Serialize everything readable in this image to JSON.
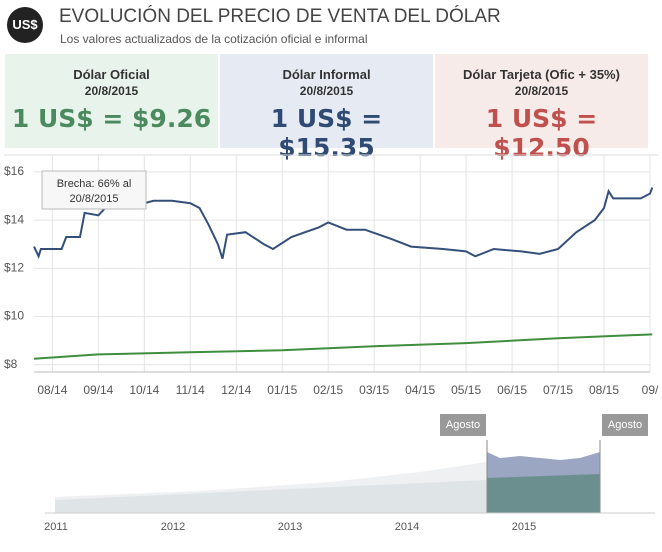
{
  "header": {
    "logo": "US$",
    "title": "EVOLUCIÓN DEL PRECIO DE VENTA DEL DÓLAR",
    "subtitle": "Los valores actualizados de la cotización oficial e informal"
  },
  "cards": [
    {
      "label": "Dólar Oficial",
      "date": "20/8/2015",
      "value": "1 US$ = $9.26",
      "color": "#4a8a5e",
      "background": "#e8f3ec"
    },
    {
      "label": "Dólar Informal",
      "date": "20/8/2015",
      "value": "1 US$ = $15.35",
      "color": "#2f4b73",
      "background": "#e6ebf3"
    },
    {
      "label": "Dólar Tarjeta (Ofic + 35%)",
      "date": "20/8/2015",
      "value": "1 US$ = $12.50",
      "color": "#c0504d",
      "background": "#f7ebe9"
    }
  ],
  "chart_data": {
    "type": "line",
    "xlim": [
      -0.4,
      13
    ],
    "ylim": [
      7.7,
      16.7
    ],
    "xticks": [
      {
        "value": 0,
        "label": "08/14"
      },
      {
        "value": 1,
        "label": "09/14"
      },
      {
        "value": 2,
        "label": "10/14"
      },
      {
        "value": 3,
        "label": "11/14"
      },
      {
        "value": 4,
        "label": "12/14"
      },
      {
        "value": 5,
        "label": "01/15"
      },
      {
        "value": 6,
        "label": "02/15"
      },
      {
        "value": 7,
        "label": "03/15"
      },
      {
        "value": 8,
        "label": "04/15"
      },
      {
        "value": 9,
        "label": "05/15"
      },
      {
        "value": 10,
        "label": "06/15"
      },
      {
        "value": 11,
        "label": "07/15"
      },
      {
        "value": 12,
        "label": "08/15"
      },
      {
        "value": 13,
        "label": "09/"
      }
    ],
    "yticks": [
      {
        "value": 8,
        "label": "$8"
      },
      {
        "value": 10,
        "label": "$10"
      },
      {
        "value": 12,
        "label": "$12"
      },
      {
        "value": 14,
        "label": "$14"
      },
      {
        "value": 16,
        "label": "$16"
      }
    ],
    "grid": true,
    "annotation": [
      "Brecha: 66% al",
      "20/8/2015"
    ],
    "series": [
      {
        "name": "Dólar Informal",
        "color": "#34507a",
        "x": [
          -0.4,
          -0.3,
          -0.25,
          -0.2,
          0.2,
          0.3,
          0.6,
          0.7,
          1.0,
          1.2,
          1.5,
          2.0,
          2.2,
          2.6,
          3.0,
          3.2,
          3.4,
          3.6,
          3.7,
          3.8,
          4.2,
          4.6,
          4.8,
          5.2,
          5.8,
          6.0,
          6.4,
          6.8,
          7.4,
          7.8,
          8.5,
          9.0,
          9.2,
          9.6,
          10.2,
          10.6,
          11.0,
          11.4,
          11.8,
          12.0,
          12.1,
          12.2,
          12.4,
          12.8,
          13.0,
          13.05
        ],
        "values": [
          12.9,
          12.5,
          12.8,
          12.8,
          12.8,
          13.3,
          13.3,
          14.3,
          14.2,
          14.6,
          14.8,
          14.7,
          14.8,
          14.8,
          14.7,
          14.5,
          13.8,
          13.0,
          12.4,
          13.4,
          13.5,
          13.0,
          12.8,
          13.3,
          13.7,
          13.9,
          13.6,
          13.6,
          13.2,
          12.9,
          12.8,
          12.7,
          12.5,
          12.8,
          12.7,
          12.6,
          12.8,
          13.5,
          14.0,
          14.5,
          15.2,
          14.9,
          14.9,
          14.9,
          15.1,
          15.35
        ]
      },
      {
        "name": "Dólar Oficial",
        "color": "#3e8e3e",
        "x": [
          -0.4,
          1,
          3,
          5,
          7,
          9,
          11,
          13.05
        ],
        "values": [
          8.25,
          8.43,
          8.52,
          8.6,
          8.77,
          8.9,
          9.1,
          9.26
        ]
      }
    ]
  },
  "navigator": {
    "years": [
      "2011",
      "2012",
      "2013",
      "2014",
      "2015"
    ],
    "handles": [
      "Agosto",
      "Agosto"
    ]
  }
}
